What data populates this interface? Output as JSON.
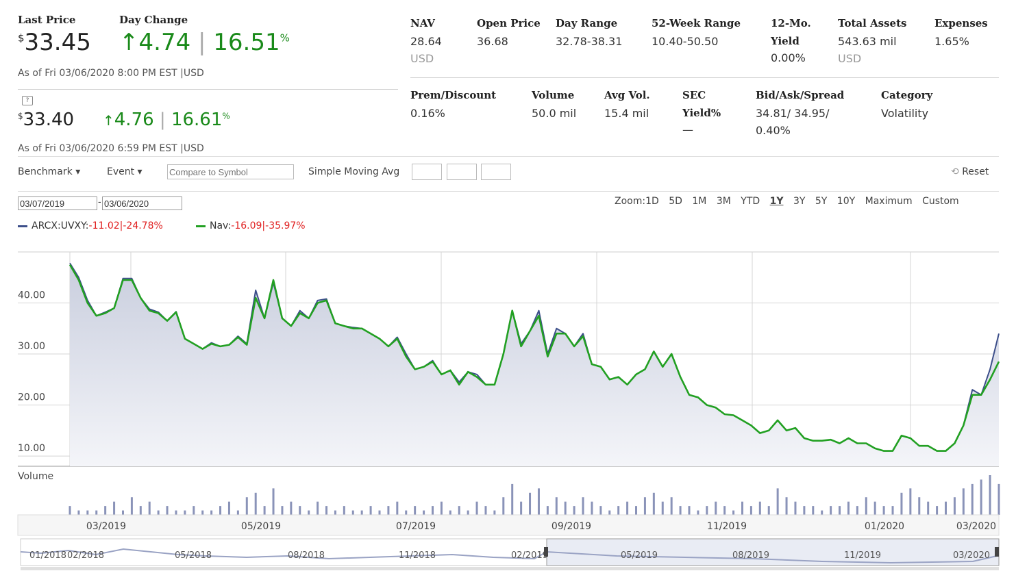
{
  "quote": {
    "last_price_label": "Last Price",
    "day_change_label": "Day Change",
    "currency_symbol": "$",
    "last_price": "33.45",
    "change_arrow": "↑",
    "change": "4.74",
    "divider": "|",
    "change_pct": "16.51",
    "pct_sign": "%",
    "as_of": "As of  Fri 03/06/2020 8:00 PM  EST |USD",
    "ext_price": "33.40",
    "ext_change": "4.76",
    "ext_change_pct": "16.61",
    "ext_as_of": "As of  Fri 03/06/2020 6:59 PM  EST |USD"
  },
  "stats_row1": [
    {
      "label": "NAV",
      "value": "28.64",
      "sub": "USD"
    },
    {
      "label": "Open Price",
      "value": "36.68",
      "sub": ""
    },
    {
      "label": "Day Range",
      "value": "32.78-38.31",
      "sub": ""
    },
    {
      "label": "52-Week Range",
      "value": "10.40-50.50",
      "sub": ""
    },
    {
      "label": "12-Mo.",
      "label2": "Yield",
      "value": "0.00%",
      "sub": ""
    },
    {
      "label": "Total Assets",
      "value": "543.63 mil",
      "sub": "USD"
    },
    {
      "label": "Expenses",
      "value": "1.65%",
      "sub": ""
    }
  ],
  "stats_row2": [
    {
      "label": "Prem/Discount",
      "value": "0.16%"
    },
    {
      "label": "Volume",
      "value": "50.0 mil"
    },
    {
      "label": "Avg Vol.",
      "value": "15.4 mil"
    },
    {
      "label": "SEC",
      "label2": "Yield%",
      "value": "—"
    },
    {
      "label": "Bid/Ask/Spread",
      "value": "34.81/ 34.95/",
      "value2": "0.40%"
    },
    {
      "label": "Category",
      "value": "Volatility"
    }
  ],
  "toolbar": {
    "benchmark": "Benchmark ▾",
    "event": "Event ▾",
    "compare_placeholder": "Compare to Symbol",
    "sma_label": "Simple Moving Avg",
    "reset": "Reset"
  },
  "date_range": {
    "start": "03/07/2019",
    "dash": "-",
    "end": "03/06/2020"
  },
  "zoom": {
    "label": "Zoom:",
    "options": [
      "1D",
      "5D",
      "1M",
      "3M",
      "YTD",
      "1Y",
      "3Y",
      "5Y",
      "10Y",
      "Maximum",
      "Custom"
    ],
    "active": "1Y"
  },
  "legend": {
    "s1_name": "ARCX:UVXY:",
    "s1_change": "-11.02|-24.78%",
    "s2_name": "Nav:",
    "s2_change": "-16.09|-35.97%"
  },
  "colors": {
    "price": "#3d4f8a",
    "nav": "#22a022",
    "fill": "#dfe2ec",
    "up": "#1a8a1a",
    "down": "#e02020"
  },
  "icons": {
    "comment": "comment-icon",
    "reset": "refresh-icon",
    "arrow_up": "arrow-up-icon"
  },
  "chart_data": {
    "type": "line",
    "xlabel": "",
    "ylabel": "",
    "x_tick_labels": [
      "03/2019",
      "05/2019",
      "07/2019",
      "09/2019",
      "11/2019",
      "01/2020",
      "03/2020"
    ],
    "y_tick_labels": [
      "10.00",
      "20.00",
      "30.00",
      "40.00"
    ],
    "ylim": [
      8,
      50
    ],
    "volume_label": "Volume",
    "navigator_labels": [
      "01/2018",
      "02/2018",
      "05/2018",
      "08/2018",
      "11/2018",
      "02/2019",
      "05/2019",
      "08/2019",
      "11/2019",
      "03/2020"
    ],
    "series": [
      {
        "name": "ARCX:UVXY",
        "values": [
          47.8,
          45.0,
          40.5,
          37.5,
          38.2,
          39.0,
          44.8,
          44.8,
          41.0,
          38.8,
          38.2,
          36.5,
          38.3,
          33.0,
          32.0,
          31.0,
          32.2,
          31.5,
          31.8,
          33.5,
          32.0,
          42.5,
          37.0,
          44.0,
          37.0,
          35.5,
          38.5,
          37.0,
          40.5,
          40.8,
          36.0,
          35.5,
          35.2,
          35.0,
          34.0,
          33.0,
          31.5,
          33.3,
          30.0,
          27.0,
          27.5,
          28.7,
          26.0,
          26.8,
          24.5,
          26.5,
          26.0,
          24.0,
          24.0,
          30.0,
          38.5,
          32.0,
          34.5,
          38.5,
          30.0,
          35.0,
          34.0,
          31.5,
          34.0,
          28.0,
          27.5,
          25.0,
          25.5,
          24.0,
          26.0,
          27.0,
          30.5,
          27.5,
          30.0,
          25.5,
          22.0,
          21.5,
          20.0,
          19.5,
          18.2,
          18.0,
          17.0,
          16.0,
          14.5,
          15.0,
          17.0,
          15.0,
          15.5,
          13.5,
          13.0,
          13.0,
          13.2,
          12.5,
          13.5,
          12.5,
          12.5,
          11.5,
          11.0,
          11.0,
          14.0,
          13.5,
          12.0,
          12.0,
          11.0,
          11.0,
          12.5,
          16.0,
          23.0,
          22.0,
          27.0,
          34.0
        ]
      },
      {
        "name": "Nav",
        "values": [
          47.5,
          44.5,
          40.0,
          37.5,
          38.0,
          39.0,
          44.5,
          44.5,
          41.0,
          38.5,
          38.0,
          36.5,
          38.2,
          33.0,
          32.0,
          31.0,
          32.0,
          31.5,
          31.8,
          33.3,
          31.8,
          41.0,
          37.0,
          44.5,
          37.0,
          35.5,
          38.0,
          37.0,
          40.0,
          40.5,
          36.0,
          35.5,
          35.0,
          35.0,
          34.0,
          33.0,
          31.5,
          33.0,
          29.5,
          27.0,
          27.5,
          28.5,
          26.0,
          26.8,
          24.0,
          26.5,
          25.5,
          24.0,
          24.0,
          30.0,
          38.5,
          31.5,
          34.5,
          37.5,
          29.5,
          34.0,
          34.0,
          31.5,
          33.5,
          28.0,
          27.5,
          25.0,
          25.5,
          24.0,
          26.0,
          27.0,
          30.5,
          27.5,
          30.0,
          25.5,
          22.0,
          21.5,
          20.0,
          19.5,
          18.2,
          18.0,
          17.0,
          16.0,
          14.5,
          15.0,
          17.0,
          15.0,
          15.5,
          13.5,
          13.0,
          13.0,
          13.2,
          12.5,
          13.5,
          12.5,
          12.5,
          11.5,
          11.0,
          11.0,
          14.0,
          13.5,
          12.0,
          12.0,
          11.0,
          11.0,
          12.5,
          16.0,
          22.0,
          22.0,
          25.0,
          28.5
        ]
      }
    ],
    "volume": [
      2,
      1,
      1,
      1,
      2,
      3,
      1,
      4,
      2,
      3,
      1,
      2,
      1,
      1,
      2,
      1,
      1,
      2,
      3,
      1,
      4,
      5,
      2,
      6,
      2,
      3,
      2,
      1,
      3,
      2,
      1,
      2,
      1,
      1,
      2,
      1,
      2,
      3,
      1,
      2,
      1,
      2,
      3,
      1,
      2,
      1,
      3,
      2,
      1,
      4,
      7,
      3,
      5,
      6,
      2,
      4,
      3,
      2,
      4,
      3,
      2,
      1,
      2,
      3,
      2,
      4,
      5,
      3,
      4,
      2,
      2,
      1,
      2,
      3,
      2,
      1,
      3,
      2,
      3,
      2,
      6,
      4,
      3,
      2,
      2,
      1,
      2,
      2,
      3,
      2,
      4,
      3,
      2,
      2,
      5,
      6,
      4,
      3,
      2,
      3,
      4,
      6,
      7,
      8,
      9,
      7
    ]
  }
}
